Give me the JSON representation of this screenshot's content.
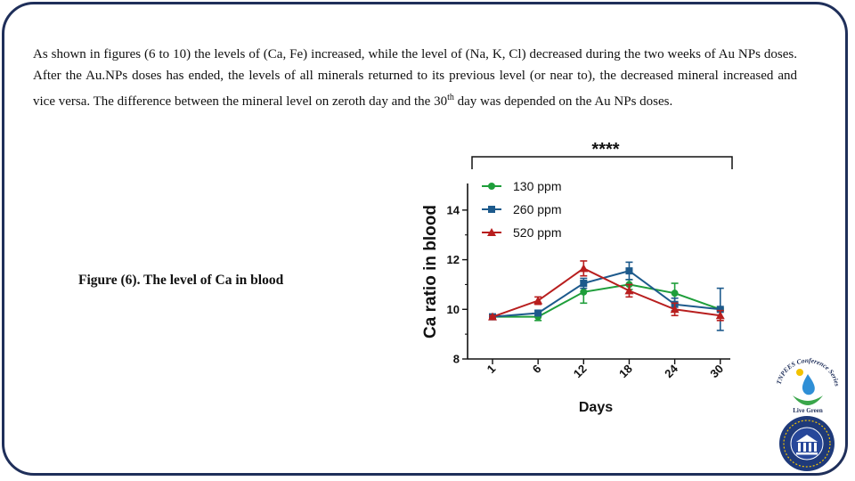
{
  "slide": {
    "paragraph": {
      "part1": "As shown in figures (6 to 10) the levels of (Ca, Fe) increased, while the level of (Na, K, Cl) decreased during the two weeks of Au NPs doses. After the Au.NPs doses has ended, the levels of all minerals returned to its previous level (or near to), the decreased mineral increased and vice versa. The difference between the mineral level on zeroth day and the 30",
      "sup": "th",
      "part2": " day was depended on the Au NPs doses."
    },
    "caption": "Figure (6). The level of Ca in blood",
    "significance": "****",
    "logo_top_text": "TNPEES Conference Series",
    "logo_top_sub": "Live Green",
    "colors": {
      "frame": "#1f2f5a",
      "green": "#1e9e3a",
      "blue": "#1d5a8c",
      "red": "#b81e1e"
    }
  },
  "chart_data": {
    "type": "line",
    "xlabel": "Days",
    "ylabel": "Ca ratio in blood",
    "categories": [
      "1",
      "6",
      "12",
      "18",
      "24",
      "30"
    ],
    "ylim": [
      8,
      15
    ],
    "yticks": [
      8,
      10,
      12,
      14
    ],
    "legend_position": "top-left",
    "grid": false,
    "series": [
      {
        "name": "130 ppm",
        "color": "#1e9e3a",
        "marker": "circle",
        "values": [
          9.7,
          9.7,
          10.7,
          11.0,
          10.65,
          10.0
        ],
        "errors": [
          0.05,
          0.15,
          0.45,
          0.2,
          0.4,
          0.05
        ]
      },
      {
        "name": "260 ppm",
        "color": "#1d5a8c",
        "marker": "square",
        "values": [
          9.7,
          9.85,
          11.05,
          11.55,
          10.2,
          10.0
        ],
        "errors": [
          0.05,
          0.1,
          0.2,
          0.35,
          0.25,
          0.85
        ]
      },
      {
        "name": "520 ppm",
        "color": "#b81e1e",
        "marker": "triangle",
        "values": [
          9.7,
          10.35,
          11.65,
          10.75,
          10.0,
          9.75
        ],
        "errors": [
          0.05,
          0.15,
          0.3,
          0.25,
          0.25,
          0.2
        ]
      }
    ]
  }
}
